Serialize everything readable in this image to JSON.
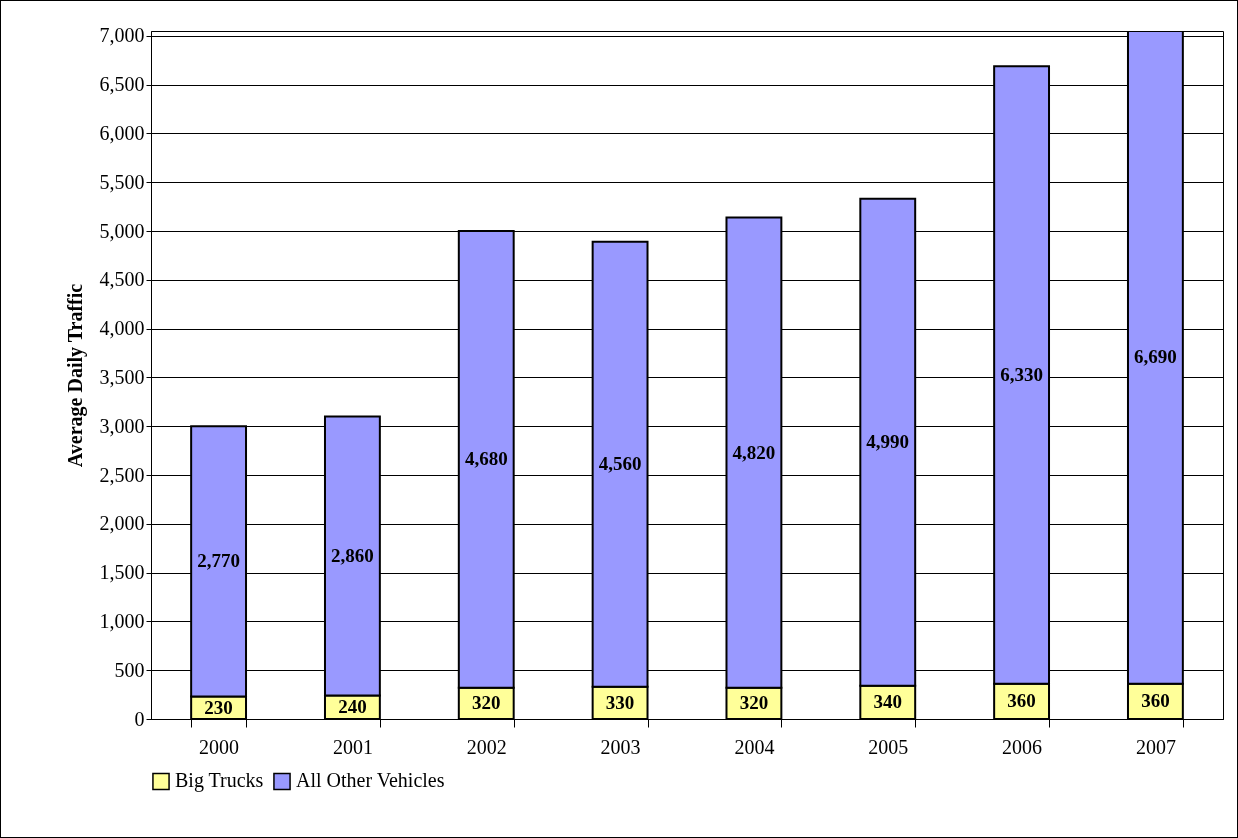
{
  "chart_data": {
    "type": "bar",
    "stacked": true,
    "ylabel": "Average Daily Traffic",
    "categories": [
      "2000",
      "2001",
      "2002",
      "2003",
      "2004",
      "2005",
      "2006",
      "2007"
    ],
    "series": [
      {
        "name": "Big Trucks",
        "color": "#ffff99",
        "values": [
          230,
          240,
          320,
          330,
          320,
          340,
          360,
          360
        ],
        "value_labels": [
          "230",
          "240",
          "320",
          "330",
          "320",
          "340",
          "360",
          "360"
        ]
      },
      {
        "name": "All Other Vehicles",
        "color": "#9999ff",
        "values": [
          2770,
          2860,
          4680,
          4560,
          4820,
          4990,
          6330,
          6690
        ],
        "value_labels": [
          "2,770",
          "2,860",
          "4,680",
          "4,560",
          "4,820",
          "4,990",
          "6,330",
          "6,690"
        ]
      }
    ],
    "ylim": [
      0,
      7050
    ],
    "yticks": [
      0,
      {
        "value": 500,
        "label": "500"
      },
      {
        "value": 1000,
        "label": "1,000"
      },
      {
        "value": 1500,
        "label": "1,500"
      },
      {
        "value": 2000,
        "label": "2,000"
      },
      {
        "value": 2500,
        "label": "2,500"
      },
      {
        "value": 3000,
        "label": "3,000"
      },
      {
        "value": 3500,
        "label": "3,500"
      },
      {
        "value": 4000,
        "label": "4,000"
      },
      {
        "value": 4500,
        "label": "4,500"
      },
      {
        "value": 5000,
        "label": "5,000"
      },
      {
        "value": 5500,
        "label": "5,500"
      },
      {
        "value": 6000,
        "label": "6,000"
      },
      {
        "value": 6500,
        "label": "6,500"
      },
      {
        "value": 7000,
        "label": "7,000"
      }
    ],
    "grid": "y",
    "legend": "bottom"
  }
}
